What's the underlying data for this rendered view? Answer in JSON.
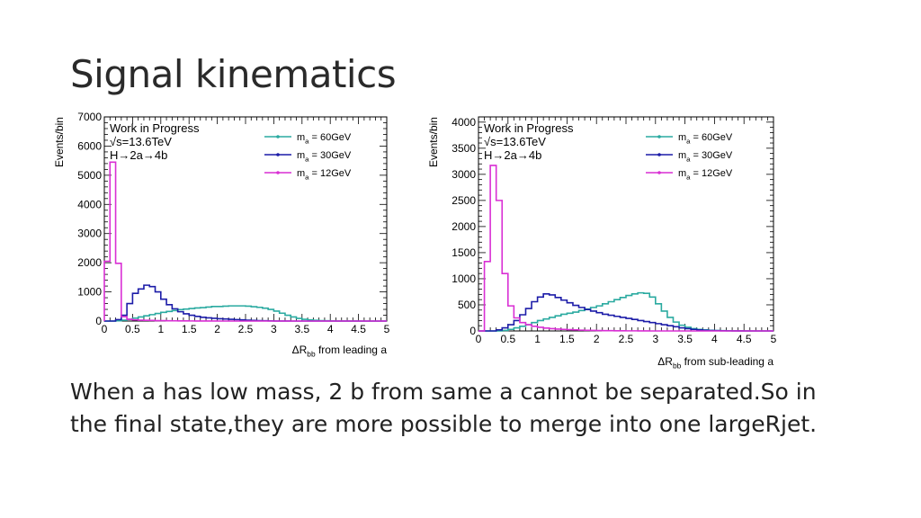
{
  "slide": {
    "title": "Signal kinematics",
    "body_lines": [
      "When a has low mass, 2 b from same a cannot be separated.So in",
      "the final state,they are more possible to merge into one largeRjet."
    ]
  },
  "colors": {
    "m60": "#2aaaa0",
    "m30": "#1c1ca8",
    "m12": "#d92fd4"
  },
  "chart_data": [
    {
      "type": "line",
      "style": "step-histogram",
      "ylabel": "Events/bin",
      "xlabel_main": "ΔR",
      "xlabel_sub": "bb",
      "xlabel_rest": " from leading a",
      "xlim": [
        0,
        5
      ],
      "ylim": [
        0,
        7000
      ],
      "xticks": [
        "0",
        "0.5",
        "1",
        "1.5",
        "2",
        "2.5",
        "3",
        "3.5",
        "4",
        "4.5",
        "5"
      ],
      "yticks": [
        "0",
        "1000",
        "2000",
        "3000",
        "4000",
        "5000",
        "6000",
        "7000"
      ],
      "annotations": [
        "Work in Progress",
        "√s=13.6TeV",
        "H→2a→4b"
      ],
      "legend_position": "top-right",
      "bin_width": 0.1,
      "series": [
        {
          "name_main": "m",
          "name_sub": "a",
          "name_rest": " = 60GeV",
          "color": "#2aaaa0",
          "values": [
            0,
            0,
            10,
            30,
            60,
            100,
            140,
            180,
            220,
            260,
            300,
            330,
            360,
            390,
            410,
            430,
            450,
            460,
            480,
            500,
            500,
            510,
            520,
            520,
            520,
            510,
            490,
            470,
            440,
            400,
            340,
            270,
            200,
            140,
            90,
            60,
            40,
            25,
            15,
            10,
            5,
            3,
            2,
            1,
            1,
            0,
            0,
            0,
            0,
            0
          ]
        },
        {
          "name_main": "m",
          "name_sub": "a",
          "name_rest": " = 30GeV",
          "color": "#1c1ca8",
          "values": [
            0,
            0,
            50,
            200,
            600,
            950,
            1100,
            1230,
            1180,
            1000,
            750,
            560,
            420,
            320,
            250,
            200,
            160,
            130,
            110,
            95,
            80,
            70,
            60,
            50,
            40,
            30,
            20,
            15,
            10,
            5,
            3,
            2,
            1,
            0,
            0,
            0,
            0,
            0,
            0,
            0,
            0,
            0,
            0,
            0,
            0,
            0,
            0,
            0,
            0,
            0
          ]
        },
        {
          "name_main": "m",
          "name_sub": "a",
          "name_rest": " = 12GeV",
          "color": "#d92fd4",
          "values": [
            2050,
            5450,
            1980,
            150,
            60,
            40,
            30,
            25,
            20,
            15,
            12,
            10,
            8,
            6,
            5,
            4,
            3,
            2,
            1,
            1,
            0,
            0,
            0,
            0,
            0,
            0,
            0,
            0,
            0,
            0,
            0,
            0,
            0,
            0,
            0,
            0,
            0,
            0,
            0,
            0,
            0,
            0,
            0,
            0,
            0,
            0,
            0,
            0,
            0,
            0
          ]
        }
      ]
    },
    {
      "type": "line",
      "style": "step-histogram",
      "ylabel": "Events/bin",
      "xlabel_main": "ΔR",
      "xlabel_sub": "bb",
      "xlabel_rest": " from sub-leading a",
      "xlim": [
        0,
        5
      ],
      "ylim": [
        0,
        4100
      ],
      "xticks": [
        "0",
        "0.5",
        "1",
        "1.5",
        "2",
        "2.5",
        "3",
        "3.5",
        "4",
        "4.5",
        "5"
      ],
      "yticks": [
        "0",
        "500",
        "1000",
        "1500",
        "2000",
        "2500",
        "3000",
        "3500",
        "4000"
      ],
      "annotations": [
        "Work in Progress",
        "√s=13.6TeV",
        "H→2a→4b"
      ],
      "legend_position": "top-right",
      "bin_width": 0.1,
      "series": [
        {
          "name_main": "m",
          "name_sub": "a",
          "name_rest": " = 60GeV",
          "color": "#2aaaa0",
          "values": [
            0,
            0,
            0,
            0,
            10,
            30,
            60,
            90,
            120,
            160,
            200,
            230,
            260,
            290,
            320,
            340,
            360,
            390,
            420,
            450,
            480,
            520,
            560,
            600,
            640,
            680,
            710,
            730,
            720,
            650,
            520,
            380,
            260,
            170,
            110,
            70,
            45,
            30,
            20,
            12,
            8,
            5,
            3,
            2,
            1,
            1,
            0,
            0,
            0,
            0
          ]
        },
        {
          "name_main": "m",
          "name_sub": "a",
          "name_rest": " = 30GeV",
          "color": "#1c1ca8",
          "values": [
            0,
            0,
            0,
            20,
            60,
            120,
            200,
            310,
            430,
            560,
            650,
            710,
            690,
            640,
            590,
            540,
            490,
            450,
            410,
            380,
            350,
            320,
            300,
            280,
            260,
            240,
            220,
            200,
            180,
            160,
            140,
            120,
            100,
            80,
            60,
            45,
            30,
            20,
            12,
            8,
            5,
            3,
            2,
            1,
            1,
            0,
            0,
            0,
            0,
            0
          ]
        },
        {
          "name_main": "m",
          "name_sub": "a",
          "name_rest": " = 12GeV",
          "color": "#d92fd4",
          "values": [
            0,
            1330,
            3170,
            2500,
            1100,
            480,
            250,
            160,
            120,
            90,
            70,
            55,
            45,
            35,
            30,
            25,
            20,
            15,
            12,
            10,
            8,
            6,
            5,
            4,
            3,
            2,
            2,
            1,
            1,
            0,
            0,
            0,
            0,
            0,
            0,
            0,
            0,
            0,
            0,
            0,
            0,
            0,
            0,
            0,
            0,
            0,
            0,
            0,
            0,
            0
          ]
        }
      ]
    }
  ]
}
